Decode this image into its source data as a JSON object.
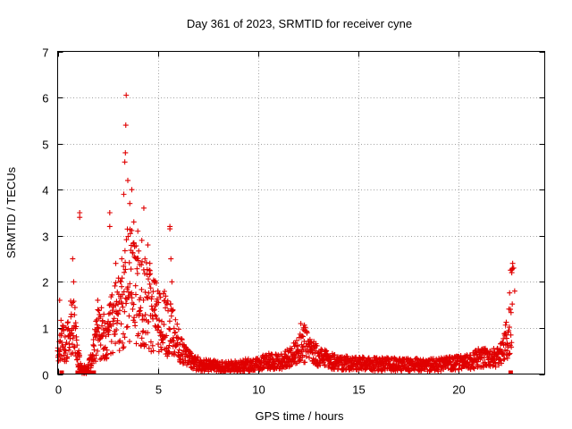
{
  "chart_data": {
    "type": "scatter",
    "title": "Day 361 of 2023, SRMTID for receiver cyne",
    "xlabel": "GPS time / hours",
    "ylabel": "SRMTID / TECUs",
    "xlim": [
      0,
      24.3
    ],
    "ylim": [
      0,
      7
    ],
    "xticks": [
      0,
      5,
      10,
      15,
      20
    ],
    "yticks": [
      0,
      1,
      2,
      3,
      4,
      5,
      6,
      7
    ],
    "grid": true,
    "marker": "+",
    "series": [
      {
        "name": "SRMTID",
        "color": "#e00000",
        "profile": [
          [
            0.0,
            0.5
          ],
          [
            0.2,
            0.8
          ],
          [
            0.4,
            0.6
          ],
          [
            0.6,
            0.9
          ],
          [
            0.8,
            1.2
          ],
          [
            1.0,
            0.4
          ],
          [
            1.2,
            0.1
          ],
          [
            1.5,
            0.1
          ],
          [
            1.8,
            0.5
          ],
          [
            2.0,
            0.9
          ],
          [
            2.3,
            0.9
          ],
          [
            2.6,
            1.0
          ],
          [
            2.9,
            1.2
          ],
          [
            3.2,
            1.4
          ],
          [
            3.5,
            2.0
          ],
          [
            3.8,
            1.9
          ],
          [
            4.1,
            1.6
          ],
          [
            4.4,
            1.5
          ],
          [
            4.7,
            1.3
          ],
          [
            5.0,
            1.2
          ],
          [
            5.3,
            1.1
          ],
          [
            5.6,
            1.0
          ],
          [
            5.9,
            0.7
          ],
          [
            6.2,
            0.5
          ],
          [
            6.5,
            0.35
          ],
          [
            6.8,
            0.25
          ],
          [
            7.2,
            0.2
          ],
          [
            7.6,
            0.18
          ],
          [
            8.0,
            0.17
          ],
          [
            8.5,
            0.15
          ],
          [
            9.0,
            0.17
          ],
          [
            9.5,
            0.2
          ],
          [
            10.0,
            0.2
          ],
          [
            10.5,
            0.3
          ],
          [
            11.0,
            0.25
          ],
          [
            11.5,
            0.35
          ],
          [
            12.0,
            0.5
          ],
          [
            12.2,
            0.75
          ],
          [
            12.5,
            0.55
          ],
          [
            13.0,
            0.4
          ],
          [
            13.5,
            0.3
          ],
          [
            14.0,
            0.25
          ],
          [
            15.0,
            0.22
          ],
          [
            16.0,
            0.22
          ],
          [
            17.0,
            0.2
          ],
          [
            18.0,
            0.2
          ],
          [
            19.0,
            0.2
          ],
          [
            20.0,
            0.25
          ],
          [
            20.5,
            0.25
          ],
          [
            21.0,
            0.35
          ],
          [
            21.5,
            0.35
          ],
          [
            22.0,
            0.35
          ],
          [
            22.3,
            0.6
          ],
          [
            22.5,
            0.9
          ],
          [
            22.6,
            1.4
          ],
          [
            22.7,
            1.6
          ]
        ],
        "peaks": [
          [
            0.1,
            1.6
          ],
          [
            0.7,
            1.5
          ],
          [
            0.75,
            2.5
          ],
          [
            0.8,
            2.0
          ],
          [
            1.1,
            3.5
          ],
          [
            1.1,
            3.4
          ],
          [
            2.0,
            1.6
          ],
          [
            2.6,
            3.5
          ],
          [
            2.6,
            3.2
          ],
          [
            2.9,
            2.4
          ],
          [
            3.2,
            2.5
          ],
          [
            3.3,
            3.9
          ],
          [
            3.35,
            4.6
          ],
          [
            3.38,
            4.8
          ],
          [
            3.4,
            5.4
          ],
          [
            3.42,
            6.05
          ],
          [
            3.5,
            4.2
          ],
          [
            3.6,
            3.7
          ],
          [
            3.7,
            4.0
          ],
          [
            3.8,
            3.3
          ],
          [
            4.0,
            3.1
          ],
          [
            4.2,
            2.9
          ],
          [
            4.3,
            3.6
          ],
          [
            4.5,
            2.8
          ],
          [
            4.6,
            2.4
          ],
          [
            5.0,
            1.8
          ],
          [
            5.6,
            3.2
          ],
          [
            5.6,
            3.15
          ],
          [
            5.65,
            2.5
          ],
          [
            5.7,
            2.0
          ],
          [
            22.7,
            2.4
          ],
          [
            22.75,
            2.3
          ],
          [
            22.8,
            1.8
          ]
        ],
        "zeros": [
          [
            0.2,
            0.0
          ],
          [
            1.0,
            0.0
          ],
          [
            1.2,
            0.0
          ],
          [
            1.4,
            0.0
          ],
          [
            1.6,
            0.0
          ],
          [
            1.8,
            0.0
          ],
          [
            22.6,
            0.0
          ]
        ]
      }
    ]
  }
}
